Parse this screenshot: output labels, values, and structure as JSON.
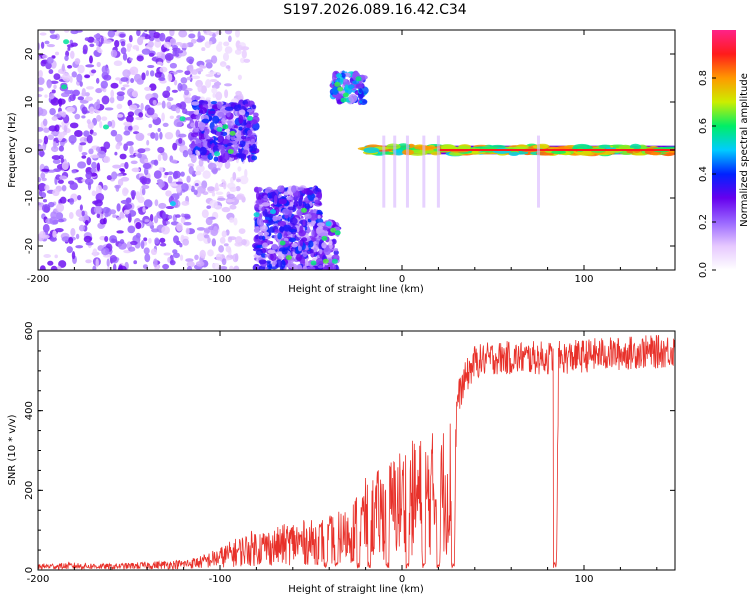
{
  "title": "S197.2026.089.16.42.C34",
  "colors": {
    "snr_line": "#e8312a",
    "ridge": "#ff1b1b",
    "frame": "#000000"
  },
  "chart_data": [
    {
      "type": "heatmap",
      "xlabel": "Height of straight line (km)",
      "ylabel": "Frequency (Hz)",
      "xlim": [
        -200,
        150
      ],
      "ylim": [
        -25,
        25
      ],
      "xticks": [
        -200,
        -100,
        0,
        100
      ],
      "yticks": [
        -20,
        -10,
        0,
        10,
        20
      ],
      "colorbar": {
        "label": "Normalized spectral amplitude",
        "range": [
          0,
          1
        ],
        "ticks": [
          "0.0",
          "0.2",
          "0.4",
          "0.6",
          "0.8"
        ],
        "tick_values": [
          0,
          0.2,
          0.4,
          0.6,
          0.8
        ],
        "colormap": [
          "#ffffff",
          "#e6c8ff",
          "#9966ff",
          "#6600ee",
          "#0022ff",
          "#00ccff",
          "#00ee66",
          "#ccee00",
          "#ff9900",
          "#ff1b1b",
          "#ff2288"
        ]
      },
      "features": [
        {
          "name": "noise",
          "x": [
            -200,
            -85
          ],
          "y": [
            -25,
            25
          ],
          "level": 0.25
        },
        {
          "name": "cluster-a",
          "x": [
            -115,
            -80
          ],
          "y": [
            -2,
            10
          ],
          "level": 0.35
        },
        {
          "name": "cluster-b",
          "x": [
            -80,
            -45
          ],
          "y": [
            -25,
            -8
          ],
          "level": 0.35
        },
        {
          "name": "cluster-c",
          "x": [
            -45,
            -35
          ],
          "y": [
            -25,
            -15
          ],
          "level": 0.3
        },
        {
          "name": "cluster-d",
          "x": [
            -38,
            -20
          ],
          "y": [
            10,
            16
          ],
          "level": 0.45
        },
        {
          "name": "ridge",
          "x": [
            -20,
            150
          ],
          "y": [
            -1,
            1
          ],
          "level": 0.85
        }
      ]
    },
    {
      "type": "line",
      "xlabel": "Height of straight line (km)",
      "ylabel": "SNR (10 * v/v)",
      "xlim": [
        -200,
        150
      ],
      "ylim": [
        0,
        600
      ],
      "xticks": [
        -200,
        -100,
        0,
        100
      ],
      "yticks": [
        0,
        200,
        400,
        600
      ],
      "series": [
        {
          "x": [
            -200,
            -180,
            -160,
            -140,
            -120,
            -110,
            -100,
            -90,
            -80,
            -70,
            -60,
            -50,
            -40,
            -30,
            -20,
            -10,
            0,
            10,
            20,
            25,
            28,
            30,
            35,
            40,
            50,
            60,
            70,
            80,
            83,
            84,
            85,
            86,
            88,
            100,
            110,
            120,
            130,
            140,
            150
          ],
          "y": [
            15,
            18,
            15,
            20,
            25,
            35,
            55,
            80,
            100,
            100,
            120,
            120,
            130,
            150,
            220,
            250,
            300,
            320,
            340,
            360,
            390,
            420,
            480,
            520,
            530,
            530,
            530,
            530,
            530,
            20,
            20,
            530,
            530,
            535,
            540,
            540,
            545,
            545,
            550
          ]
        }
      ],
      "dropouts": [
        -42,
        -36,
        -24,
        -18,
        -8,
        3,
        12,
        20,
        28,
        84
      ]
    }
  ]
}
